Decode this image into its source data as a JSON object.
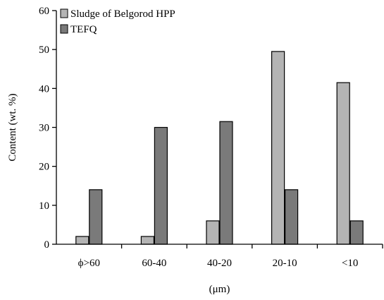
{
  "chart_data": {
    "type": "bar",
    "categories": [
      "ϕ>60",
      "60-40",
      "40-20",
      "20-10",
      "<10"
    ],
    "series": [
      {
        "name": "Sludge of Belgorod HPP",
        "values": [
          2,
          2,
          6,
          49.5,
          41.5
        ],
        "color": "#b4b4b4"
      },
      {
        "name": "TEFQ",
        "values": [
          14,
          30,
          31.5,
          14,
          6
        ],
        "color": "#7a7a7a"
      }
    ],
    "xlabel": "(μm)",
    "ylabel": "Content (wt. %)",
    "ylim": [
      0,
      60
    ],
    "yticks": [
      0,
      10,
      20,
      30,
      40,
      50,
      60
    ],
    "legend_position": "top-left",
    "grid": false
  }
}
